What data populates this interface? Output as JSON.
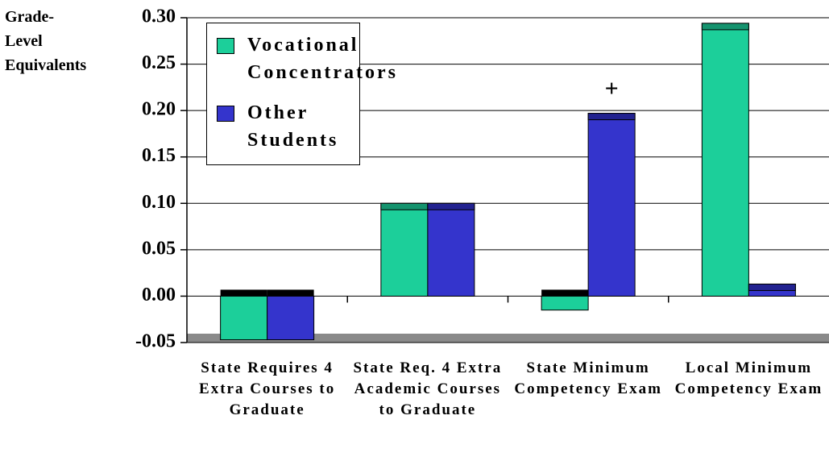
{
  "chart_data": {
    "type": "bar",
    "y_label": "Grade-Level Equivalents",
    "categories": [
      "State Requires 4 Extra Courses to Graduate",
      "State Req. 4 Extra Academic Courses to Graduate",
      "State Minimum Competency Exam",
      "Local Minimum Competency Exam"
    ],
    "series": [
      {
        "name": "Vocational Concentrators",
        "color": "#1ccf9a",
        "values": [
          -0.047,
          0.1,
          -0.015,
          0.294
        ]
      },
      {
        "name": "Other Students",
        "color": "#3434cc",
        "values": [
          -0.047,
          0.1,
          0.197,
          0.013
        ]
      }
    ],
    "ylim": [
      -0.05,
      0.3
    ],
    "yticks": [
      {
        "value": -0.05,
        "label": "-0.05"
      },
      {
        "value": 0,
        "label": "0.00"
      },
      {
        "value": 0.05,
        "label": "0.05"
      },
      {
        "value": 0.1,
        "label": "0.10"
      },
      {
        "value": 0.15,
        "label": "0.15"
      },
      {
        "value": 0.2,
        "label": "0.20"
      },
      {
        "value": 0.25,
        "label": "0.25"
      },
      {
        "value": 0.3,
        "label": "0.30"
      }
    ],
    "grid": true,
    "legend": "upper left",
    "annotations": [
      {
        "text": "+",
        "category": 2,
        "series": 1
      }
    ]
  }
}
